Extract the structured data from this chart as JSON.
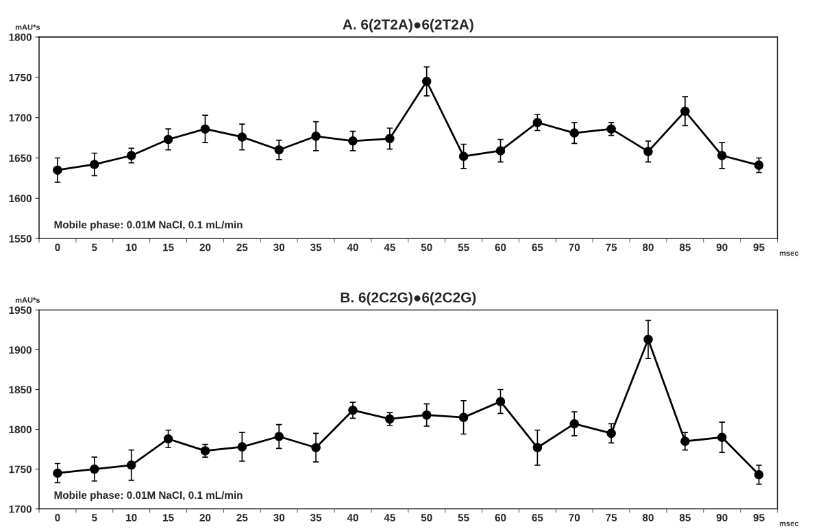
{
  "chart_data": [
    {
      "type": "line",
      "title": "A. 6(2T2A)●6(2T2A)",
      "ylabel": "mAU*s",
      "xlabel": "msec",
      "categories": [
        "0",
        "5",
        "10",
        "15",
        "20",
        "25",
        "30",
        "35",
        "40",
        "45",
        "50",
        "55",
        "60",
        "65",
        "70",
        "75",
        "80",
        "85",
        "90",
        "95"
      ],
      "values": [
        1635,
        1642,
        1653,
        1673,
        1686,
        1676,
        1660,
        1677,
        1671,
        1674,
        1745,
        1652,
        1659,
        1694,
        1681,
        1686,
        1658,
        1708,
        1653,
        1641
      ],
      "errors": [
        15,
        14,
        9,
        13,
        17,
        16,
        12,
        18,
        12,
        13,
        18,
        15,
        14,
        10,
        13,
        8,
        13,
        18,
        16,
        9
      ],
      "color": "#000000",
      "marker": "circle",
      "line_style": "solid",
      "grid": false,
      "ylim": [
        1550,
        1800
      ],
      "yticks": [
        1550,
        1600,
        1650,
        1700,
        1750,
        1800
      ],
      "annotations": [
        "Mobile phase: 0.01M NaCl, 0.1 mL/min"
      ]
    },
    {
      "type": "line",
      "title": "B. 6(2C2G)●6(2C2G)",
      "ylabel": "mAU*s",
      "xlabel": "msec",
      "categories": [
        "0",
        "5",
        "10",
        "15",
        "20",
        "25",
        "30",
        "35",
        "40",
        "45",
        "50",
        "55",
        "60",
        "65",
        "70",
        "75",
        "80",
        "85",
        "90",
        "95"
      ],
      "values": [
        1745,
        1750,
        1755,
        1788,
        1773,
        1778,
        1791,
        1777,
        1824,
        1813,
        1818,
        1815,
        1835,
        1777,
        1807,
        1795,
        1913,
        1785,
        1790,
        1743
      ],
      "errors": [
        12,
        15,
        19,
        11,
        8,
        18,
        15,
        18,
        10,
        8,
        14,
        21,
        15,
        22,
        15,
        12,
        24,
        11,
        19,
        12
      ],
      "color": "#000000",
      "marker": "circle",
      "line_style": "solid",
      "grid": false,
      "ylim": [
        1700,
        1950
      ],
      "yticks": [
        1700,
        1750,
        1800,
        1850,
        1900,
        1950
      ],
      "annotations": [
        "Mobile phase: 0.01M NaCl, 0.1 mL/min"
      ]
    }
  ]
}
